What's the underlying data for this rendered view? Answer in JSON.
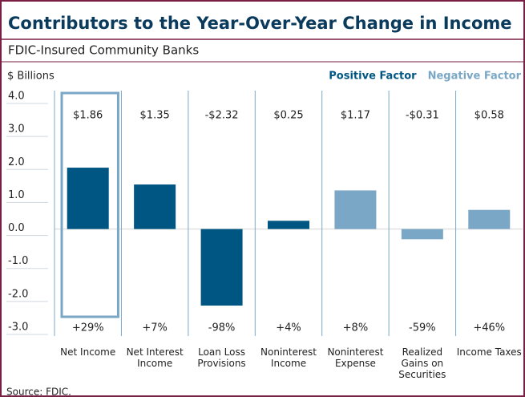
{
  "chart_data": {
    "type": "bar",
    "title": "Contributors to the Year-Over-Year Change in Income",
    "subtitle": "FDIC-Insured Community Banks",
    "y_label": "$ Billions",
    "source": "Source: FDIC.",
    "categories": [
      "Net Income",
      "Net Interest Income",
      "Loan Loss Provisions",
      "Noninterest Income",
      "Noninterest Expense",
      "Realized Gains on Securities",
      "Income Taxes"
    ],
    "series": [
      {
        "name": "Positive Factor",
        "color": "#005682",
        "values": [
          1.86,
          1.35,
          -2.32,
          0.25,
          null,
          null,
          null
        ],
        "value_labels": [
          "$1.86",
          "$1.35",
          "-$2.32",
          "$0.25",
          null,
          null,
          null
        ]
      },
      {
        "name": "Negative Factor",
        "color": "#7ba7c7",
        "values": [
          null,
          null,
          null,
          null,
          1.17,
          -0.31,
          0.58
        ],
        "value_labels": [
          null,
          null,
          null,
          null,
          "$1.17",
          "-$0.31",
          "$0.58"
        ]
      }
    ],
    "change_labels": [
      "+29%",
      "+7%",
      "-98%",
      "+4%",
      "+8%",
      "-59%",
      "+46%"
    ],
    "ylim": [
      -3,
      4
    ],
    "yticks": [
      {
        "value": 4,
        "label": "4.0"
      },
      {
        "value": 3,
        "label": "3.0"
      },
      {
        "value": 2,
        "label": "2.0"
      },
      {
        "value": 1,
        "label": "1.0"
      },
      {
        "value": 0,
        "label": "0.0"
      },
      {
        "value": -1,
        "label": "-1.0"
      },
      {
        "value": -2,
        "label": "-2.0"
      },
      {
        "value": -3,
        "label": "-3.0"
      }
    ],
    "legend": "top-right"
  }
}
